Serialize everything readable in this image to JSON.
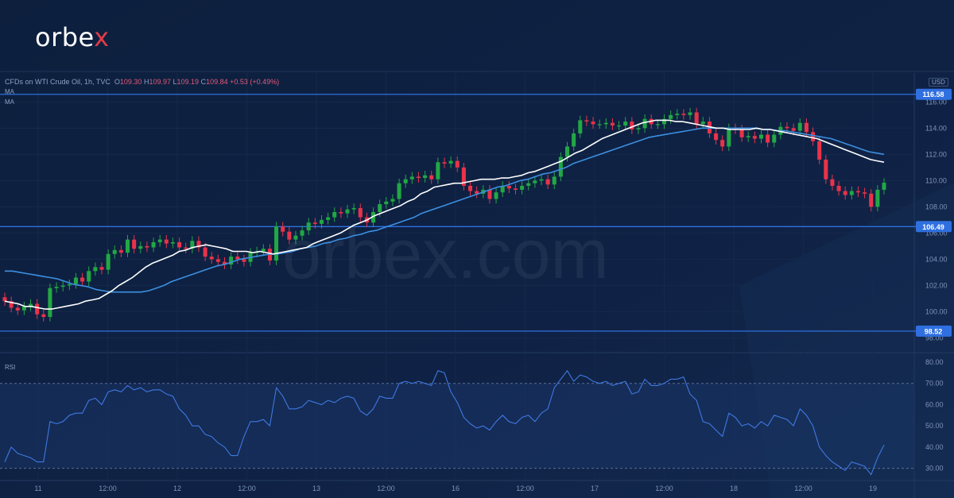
{
  "brand": {
    "name": "orbe",
    "suffix": "x"
  },
  "instrument": {
    "symbol": "CFDs on WTI Crude Oil, 1h, TVC",
    "open_label": "O",
    "open": "109.30",
    "high_label": "H",
    "high": "109.97",
    "low_label": "L",
    "low": "109.19",
    "close_label": "C",
    "close": "109.84",
    "change": "+0.53 (+0.49%)"
  },
  "indicators": {
    "ma1": "MA",
    "ma2": "MA",
    "rsi": "RSI"
  },
  "currency": "USD",
  "watermark": "orbex.com",
  "colors": {
    "up": "#22a745",
    "down": "#e8334a",
    "ma_fast": "#ffffff",
    "ma_slow": "#3c8fe0",
    "level": "#2f6fe0",
    "rsi": "#3f78e0",
    "background": "#0d1f3d"
  },
  "chart_data": {
    "type": "candlestick",
    "interval": "1h",
    "price_ticks": [
      "116.00",
      "114.00",
      "112.00",
      "110.00",
      "108.00",
      "106.00",
      "104.00",
      "102.00",
      "100.00",
      "98.00"
    ],
    "price_range": [
      97.3,
      118.2
    ],
    "levels": [
      "116.58",
      "106.49",
      "98.52"
    ],
    "x_labels": [
      "11",
      "12:00",
      "12",
      "12:00",
      "13",
      "12:00",
      "16",
      "12:00",
      "17",
      "12:00",
      "18",
      "12:00",
      "19"
    ],
    "closes": [
      100.8,
      100.3,
      100.1,
      100.4,
      100.6,
      99.8,
      99.6,
      101.8,
      101.9,
      102.0,
      102.1,
      102.6,
      102.3,
      103.1,
      103.4,
      103.2,
      104.4,
      104.7,
      104.5,
      105.5,
      104.8,
      105.0,
      104.9,
      105.3,
      105.5,
      105.2,
      105.3,
      104.9,
      104.8,
      105.4,
      104.9,
      104.2,
      104.0,
      103.8,
      103.6,
      104.2,
      104.0,
      103.8,
      104.5,
      104.6,
      104.8,
      103.9,
      106.5,
      106.1,
      105.5,
      105.8,
      106.2,
      106.8,
      106.7,
      107.0,
      107.2,
      107.6,
      107.5,
      107.8,
      107.9,
      107.2,
      106.8,
      107.6,
      108.2,
      108.4,
      108.6,
      109.8,
      110.1,
      110.3,
      110.2,
      110.4,
      110.1,
      111.4,
      111.3,
      111.5,
      111.0,
      109.6,
      109.2,
      109.0,
      109.3,
      108.6,
      109.1,
      109.6,
      109.4,
      109.3,
      109.6,
      109.8,
      110.0,
      110.1,
      109.7,
      110.3,
      111.8,
      112.6,
      113.6,
      114.6,
      114.5,
      114.3,
      114.3,
      114.4,
      114.2,
      114.2,
      114.5,
      113.9,
      114.0,
      114.7,
      114.3,
      114.3,
      114.7,
      115.0,
      115.1,
      115.0,
      115.2,
      114.3,
      114.5,
      113.6,
      113.1,
      112.6,
      114.0,
      113.9,
      113.3,
      113.4,
      113.2,
      113.5,
      112.9,
      113.5,
      114.1,
      114.0,
      113.8,
      114.4,
      113.7,
      113.0,
      111.6,
      110.1,
      109.6,
      109.2,
      108.9,
      109.2,
      109.1,
      109.0,
      108.0,
      109.3,
      109.84
    ],
    "ma_fast": [
      100.8,
      100.7,
      100.6,
      100.4,
      100.4,
      100.3,
      100.2,
      100.2,
      100.3,
      100.4,
      100.5,
      100.6,
      100.8,
      100.9,
      101.0,
      101.3,
      101.6,
      102.0,
      102.3,
      102.6,
      103.0,
      103.4,
      103.7,
      103.9,
      104.1,
      104.3,
      104.6,
      104.7,
      104.9,
      105.0,
      105.1,
      105.0,
      104.9,
      104.8,
      104.6,
      104.6,
      104.6,
      104.5,
      104.6,
      104.5,
      104.4,
      104.5,
      104.6,
      104.7,
      104.8,
      104.9,
      105.2,
      105.4,
      105.6,
      105.8,
      106.0,
      106.3,
      106.6,
      106.8,
      107.0,
      107.3,
      107.5,
      107.7,
      107.9,
      108.1,
      108.4,
      108.6,
      109.0,
      109.2,
      109.5,
      109.6,
      109.7,
      109.8,
      109.8,
      109.9,
      110.0,
      110.1,
      110.1,
      110.1,
      110.2,
      110.2,
      110.3,
      110.4,
      110.6,
      110.7,
      110.9,
      111.1,
      111.3,
      111.5,
      111.8,
      112.1,
      112.3,
      112.6,
      112.9,
      113.2,
      113.4,
      113.6,
      113.8,
      114.0,
      114.2,
      114.4,
      114.5,
      114.6,
      114.6,
      114.6,
      114.5,
      114.5,
      114.4,
      114.3,
      114.2,
      114.1,
      114.0,
      114.0,
      113.9,
      113.9,
      113.9,
      113.9,
      114.0,
      113.9,
      113.9,
      113.8,
      113.7,
      113.6,
      113.5,
      113.4,
      113.3,
      113.2,
      113.0,
      112.8,
      112.6,
      112.4,
      112.2,
      112.0,
      111.8,
      111.6,
      111.5,
      111.4
    ],
    "ma_slow": [
      103.1,
      103.1,
      103.0,
      102.9,
      102.8,
      102.7,
      102.6,
      102.5,
      102.3,
      102.1,
      102.0,
      101.9,
      101.7,
      101.6,
      101.5,
      101.5,
      101.5,
      101.5,
      101.5,
      101.6,
      101.8,
      102.0,
      102.3,
      102.5,
      102.7,
      102.9,
      103.1,
      103.3,
      103.5,
      103.6,
      103.8,
      104.0,
      104.1,
      104.2,
      104.3,
      104.4,
      104.4,
      104.5,
      104.6,
      104.8,
      104.9,
      105.0,
      105.2,
      105.3,
      105.5,
      105.6,
      105.8,
      105.9,
      106.1,
      106.2,
      106.4,
      106.6,
      106.8,
      107.0,
      107.2,
      107.5,
      107.7,
      107.9,
      108.1,
      108.3,
      108.5,
      108.7,
      108.9,
      109.1,
      109.3,
      109.5,
      109.6,
      109.8,
      110.0,
      110.1,
      110.3,
      110.5,
      110.6,
      110.8,
      111.0,
      111.3,
      111.5,
      111.7,
      111.9,
      112.1,
      112.3,
      112.5,
      112.7,
      112.9,
      113.1,
      113.3,
      113.4,
      113.5,
      113.6,
      113.7,
      113.8,
      113.9,
      114.0,
      114.0,
      114.0,
      114.0,
      114.0,
      114.0,
      114.0,
      114.0,
      113.9,
      113.9,
      113.8,
      113.8,
      113.7,
      113.6,
      113.5,
      113.4,
      113.3,
      113.2,
      113.0,
      112.8,
      112.6,
      112.4,
      112.2,
      112.1,
      112.0
    ],
    "rsi": {
      "ticks": [
        "80.00",
        "70.00",
        "60.00",
        "50.00",
        "40.00",
        "30.00"
      ],
      "range": [
        25,
        83
      ],
      "upper": 70,
      "lower": 30,
      "values": [
        33,
        40,
        37,
        36,
        35,
        33,
        33,
        52,
        51,
        52,
        55,
        56,
        56,
        62,
        63,
        60,
        66,
        67,
        66,
        69,
        67,
        68,
        66,
        67,
        67,
        65,
        64,
        58,
        55,
        50,
        50,
        46,
        45,
        42,
        40,
        36,
        36,
        45,
        52,
        52,
        53,
        50,
        68,
        64,
        58,
        58,
        59,
        62,
        61,
        60,
        62,
        61,
        63,
        64,
        63,
        57,
        55,
        58,
        64,
        63,
        63,
        70,
        71,
        70,
        71,
        70,
        69,
        76,
        75,
        66,
        61,
        54,
        51,
        49,
        50,
        48,
        52,
        55,
        52,
        51,
        54,
        55,
        52,
        56,
        58,
        68,
        72,
        76,
        71,
        74,
        73,
        71,
        70,
        71,
        69,
        70,
        71,
        65,
        66,
        72,
        69,
        69,
        70,
        72,
        72,
        73,
        65,
        62,
        52,
        51,
        48,
        45,
        56,
        54,
        50,
        51,
        49,
        52,
        50,
        55,
        54,
        53,
        50,
        58,
        55,
        50,
        40,
        36,
        33,
        31,
        29,
        33,
        32,
        31,
        27,
        35,
        41
      ]
    }
  }
}
